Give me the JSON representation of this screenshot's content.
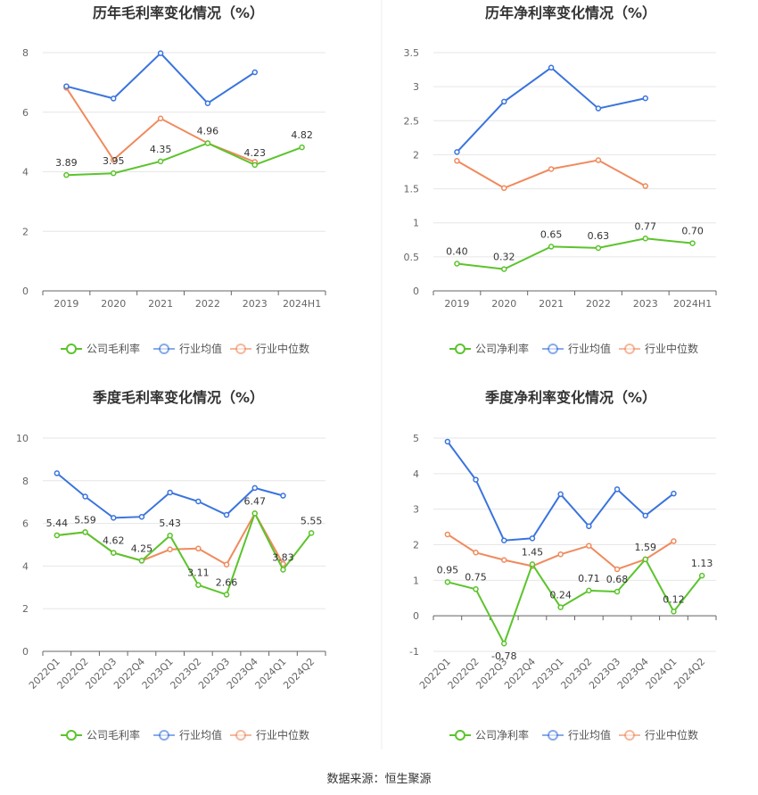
{
  "source": "数据来源：恒生聚源",
  "colors": {
    "company": "#5bc42c",
    "avg": "#3a74dd",
    "median": "#f08a5d",
    "grid": "#e6e6e6",
    "axis": "#666666"
  },
  "chart_data": [
    {
      "type": "line",
      "title": "历年毛利率变化情况（%）",
      "categories": [
        "2019",
        "2020",
        "2021",
        "2022",
        "2023",
        "2024H1"
      ],
      "ylim": [
        0,
        8
      ],
      "yticks": [
        0,
        2,
        4,
        6,
        8
      ],
      "rotate_ticks": false,
      "series": [
        {
          "name": "公司毛利率",
          "key": "company",
          "values": [
            3.89,
            3.95,
            4.35,
            4.96,
            4.23,
            4.82
          ],
          "labels": [
            "3.89",
            "3.95",
            "4.35",
            "4.96",
            "4.23",
            "4.82"
          ]
        },
        {
          "name": "行业均值",
          "key": "avg",
          "values": [
            6.87,
            6.46,
            7.98,
            6.3,
            7.34,
            null
          ]
        },
        {
          "name": "行业中位数",
          "key": "median",
          "values": [
            6.82,
            4.4,
            5.79,
            4.96,
            4.33,
            null
          ]
        }
      ]
    },
    {
      "type": "line",
      "title": "历年净利率变化情况（%）",
      "categories": [
        "2019",
        "2020",
        "2021",
        "2022",
        "2023",
        "2024H1"
      ],
      "ylim": [
        0,
        3.5
      ],
      "yticks": [
        0,
        0.5,
        1,
        1.5,
        2,
        2.5,
        3,
        3.5
      ],
      "rotate_ticks": false,
      "series": [
        {
          "name": "公司净利率",
          "key": "company",
          "values": [
            0.4,
            0.32,
            0.65,
            0.63,
            0.77,
            0.7
          ],
          "labels": [
            "0.40",
            "0.32",
            "0.65",
            "0.63",
            "0.77",
            "0.70"
          ]
        },
        {
          "name": "行业均值",
          "key": "avg",
          "values": [
            2.04,
            2.78,
            3.28,
            2.68,
            2.83,
            null
          ]
        },
        {
          "name": "行业中位数",
          "key": "median",
          "values": [
            1.91,
            1.51,
            1.79,
            1.92,
            1.54,
            null
          ]
        }
      ]
    },
    {
      "type": "line",
      "title": "季度毛利率变化情况（%）",
      "categories": [
        "2022Q1",
        "2022Q2",
        "2022Q3",
        "2022Q4",
        "2023Q1",
        "2023Q2",
        "2023Q3",
        "2023Q4",
        "2024Q1",
        "2024Q2"
      ],
      "ylim": [
        0,
        10
      ],
      "yticks": [
        0,
        2,
        4,
        6,
        8,
        10
      ],
      "rotate_ticks": true,
      "series": [
        {
          "name": "公司毛利率",
          "key": "company",
          "values": [
            5.44,
            5.59,
            4.62,
            4.25,
            5.43,
            3.11,
            2.66,
            6.47,
            3.83,
            5.55
          ],
          "labels": [
            "5.44",
            "5.59",
            "4.62",
            "4.25",
            "5.43",
            "3.11",
            "2.66",
            "6.47",
            "3.83",
            "5.55"
          ]
        },
        {
          "name": "行业均值",
          "key": "avg",
          "values": [
            8.35,
            7.26,
            6.26,
            6.31,
            7.45,
            7.03,
            6.4,
            7.66,
            7.3,
            null
          ]
        },
        {
          "name": "行业中位数",
          "key": "median",
          "values": [
            5.44,
            5.59,
            4.62,
            4.25,
            4.78,
            4.82,
            4.07,
            6.47,
            4.1,
            null
          ]
        }
      ]
    },
    {
      "type": "line",
      "title": "季度净利率变化情况（%）",
      "categories": [
        "2022Q1",
        "2022Q2",
        "2022Q3",
        "2022Q4",
        "2023Q1",
        "2023Q2",
        "2023Q3",
        "2023Q4",
        "2024Q1",
        "2024Q2"
      ],
      "ylim": [
        -1,
        5
      ],
      "yticks": [
        -1,
        0,
        1,
        2,
        3,
        4,
        5
      ],
      "rotate_ticks": true,
      "series": [
        {
          "name": "公司净利率",
          "key": "company",
          "values": [
            0.95,
            0.75,
            -0.78,
            1.45,
            0.24,
            0.71,
            0.68,
            1.59,
            0.12,
            1.13
          ],
          "labels": [
            "0.95",
            "0.75",
            "-0.78",
            "1.45",
            "0.24",
            "0.71",
            "0.68",
            "1.59",
            "0.12",
            "1.13"
          ]
        },
        {
          "name": "行业均值",
          "key": "avg",
          "values": [
            4.9,
            3.83,
            2.12,
            2.18,
            3.42,
            2.52,
            3.56,
            2.82,
            3.44,
            null
          ]
        },
        {
          "name": "行业中位数",
          "key": "median",
          "values": [
            2.29,
            1.78,
            1.57,
            1.4,
            1.73,
            1.97,
            1.31,
            1.59,
            2.1,
            null
          ]
        }
      ]
    }
  ]
}
